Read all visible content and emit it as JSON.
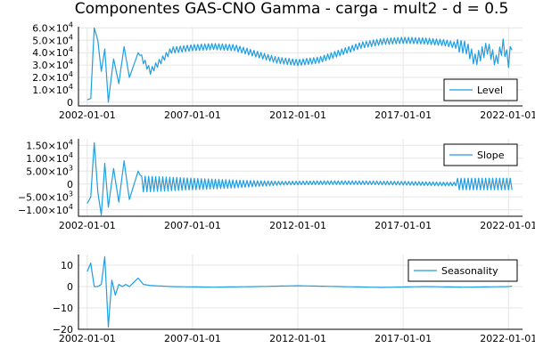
{
  "title": "Componentes GAS-CNO Gamma - carga - mult2 - d = 0.5",
  "colors": {
    "series": "#1f9ee0",
    "grid": "#e6e6e6",
    "axis": "#000000"
  },
  "x_ticks": [
    "2002-01-01",
    "2007-01-01",
    "2012-01-01",
    "2017-01-01",
    "2022-01-01"
  ],
  "chart_data": [
    {
      "type": "line",
      "legend": "Level",
      "legend_position": "bottom-right",
      "grid": true,
      "x_range": [
        "2002-01-01",
        "2022-01-01"
      ],
      "ylim": [
        -3000,
        61000
      ],
      "y_ticks": [
        {
          "value": 0,
          "base": "0",
          "exp": ""
        },
        {
          "value": 10000,
          "base": "1.0×10",
          "exp": "4"
        },
        {
          "value": 20000,
          "base": "2.0×10",
          "exp": "4"
        },
        {
          "value": 30000,
          "base": "3.0×10",
          "exp": "4"
        },
        {
          "value": 40000,
          "base": "4.0×10",
          "exp": "4"
        },
        {
          "value": 50000,
          "base": "5.0×10",
          "exp": "4"
        },
        {
          "value": 60000,
          "base": "6.0×10",
          "exp": "4"
        }
      ],
      "series_label": "Level",
      "approx": {
        "start": "2002-01-01",
        "end": "2022-03-01",
        "x": [
          "2002-01-01",
          "2002-03-01",
          "2002-05-01",
          "2002-07-01",
          "2002-09-01",
          "2002-11-01",
          "2003-01-01",
          "2003-04-01",
          "2003-07-01",
          "2003-10-01",
          "2004-01-01",
          "2004-06-01",
          "2005-01-01",
          "2006-01-01",
          "2007-01-01",
          "2008-01-01",
          "2009-01-01",
          "2010-01-01",
          "2011-01-01",
          "2012-01-01",
          "2013-01-01",
          "2014-01-01",
          "2015-01-01",
          "2016-01-01",
          "2017-01-01",
          "2018-01-01",
          "2019-01-01",
          "2020-01-01",
          "2020-06-01",
          "2021-01-01",
          "2021-06-01",
          "2021-10-01",
          "2022-01-01",
          "2022-03-01"
        ],
        "y": [
          2000,
          3000,
          60000,
          50000,
          25000,
          43000,
          0,
          35000,
          15000,
          45000,
          20000,
          40000,
          25000,
          42000,
          44000,
          45000,
          44000,
          39000,
          34000,
          32000,
          34000,
          40000,
          46000,
          49000,
          50000,
          49500,
          48000,
          44000,
          34000,
          44000,
          33000,
          46000,
          33000,
          47000
        ]
      }
    },
    {
      "type": "line",
      "legend": "Slope",
      "legend_position": "top-right",
      "grid": true,
      "x_range": [
        "2002-01-01",
        "2022-01-01"
      ],
      "ylim": [
        -12500,
        17500
      ],
      "y_ticks": [
        {
          "value": -10000,
          "base": "−1.00×10",
          "exp": "4"
        },
        {
          "value": -5000,
          "base": "−5.00×10",
          "exp": "3"
        },
        {
          "value": 0,
          "base": "0",
          "exp": ""
        },
        {
          "value": 5000,
          "base": "5.00×10",
          "exp": "3"
        },
        {
          "value": 10000,
          "base": "1.00×10",
          "exp": "4"
        },
        {
          "value": 15000,
          "base": "1.50×10",
          "exp": "4"
        }
      ],
      "series_label": "Slope",
      "approx": {
        "x": [
          "2002-01-01",
          "2002-03-01",
          "2002-05-01",
          "2002-07-01",
          "2002-09-01",
          "2002-11-01",
          "2003-01-01",
          "2003-04-01",
          "2003-07-01",
          "2003-10-01",
          "2004-01-01",
          "2004-06-01",
          "2005-01-01",
          "2006-01-01",
          "2007-01-01",
          "2008-01-01",
          "2010-01-01",
          "2012-01-01",
          "2014-01-01",
          "2016-01-01",
          "2018-01-01",
          "2020-01-01",
          "2020-06-01",
          "2021-01-01",
          "2021-06-01",
          "2021-10-01",
          "2022-01-01",
          "2022-03-01"
        ],
        "y": [
          -7500,
          -5000,
          16000,
          -3000,
          -12000,
          8000,
          -9000,
          6000,
          -7000,
          9000,
          -6000,
          5000,
          -5000,
          4000,
          -4000,
          3500,
          -2500,
          -1500,
          -1500,
          -1500,
          -1500,
          -2000,
          -3000,
          2000,
          -3000,
          3000,
          -2000,
          3000
        ]
      }
    },
    {
      "type": "line",
      "legend": "Seasonality",
      "legend_position": "top-right",
      "grid": true,
      "x_range": [
        "2002-01-01",
        "2022-01-01"
      ],
      "ylim": [
        -20,
        15
      ],
      "y_ticks": [
        {
          "value": -20,
          "base": "−20",
          "exp": ""
        },
        {
          "value": -10,
          "base": "−10",
          "exp": ""
        },
        {
          "value": 0,
          "base": "0",
          "exp": ""
        },
        {
          "value": 10,
          "base": "10",
          "exp": ""
        }
      ],
      "series_label": "Seasonality",
      "approx": {
        "x": [
          "2002-01-01",
          "2002-03-01",
          "2002-05-01",
          "2002-07-01",
          "2002-09-01",
          "2002-11-01",
          "2003-01-01",
          "2003-03-01",
          "2003-05-01",
          "2003-07-01",
          "2003-09-01",
          "2003-11-01",
          "2004-01-01",
          "2004-06-01",
          "2004-09-01",
          "2005-01-01",
          "2006-01-01",
          "2008-01-01",
          "2010-01-01",
          "2012-01-01",
          "2014-01-01",
          "2016-01-01",
          "2018-01-01",
          "2020-01-01",
          "2022-01-01",
          "2022-03-01"
        ],
        "y": [
          7,
          11,
          0,
          0,
          1,
          14,
          -19,
          3,
          -4,
          1,
          0,
          1,
          0,
          4,
          1,
          0.5,
          0,
          -0.3,
          0,
          0.4,
          0,
          -0.4,
          0,
          -0.3,
          0,
          0.2
        ]
      }
    }
  ]
}
